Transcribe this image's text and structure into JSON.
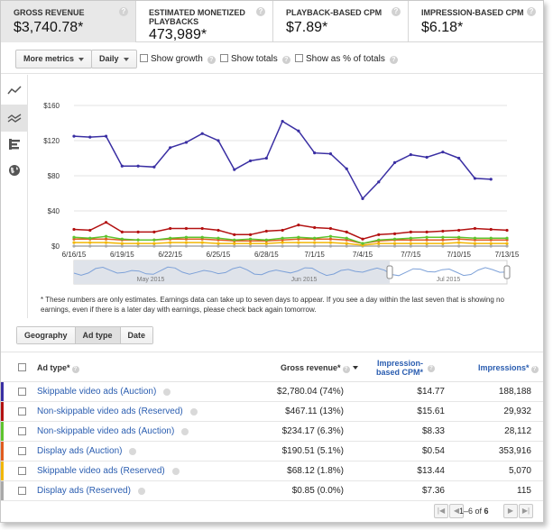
{
  "metrics": [
    {
      "label": "GROSS REVENUE",
      "value": "$3,740.78*",
      "active": true
    },
    {
      "label": "ESTIMATED MONETIZED PLAYBACKS",
      "value": "473,989*",
      "active": false
    },
    {
      "label": "PLAYBACK-BASED CPM",
      "value": "$7.89*",
      "active": false
    },
    {
      "label": "IMPRESSION-BASED CPM",
      "value": "$6.18*",
      "active": false
    }
  ],
  "toolbar": {
    "more_metrics": "More metrics",
    "interval": "Daily",
    "show_growth": "Show growth",
    "show_totals": "Show totals",
    "show_percent": "Show as % of totals"
  },
  "rail_icons": [
    "line-chart-icon",
    "multiline-chart-icon",
    "bar-chart-icon",
    "map-globe-icon"
  ],
  "chart_data": {
    "type": "line",
    "x": [
      "6/16/15",
      "6/17/15",
      "6/18/15",
      "6/19/15",
      "6/20/15",
      "6/21/15",
      "6/22/15",
      "6/23/15",
      "6/24/15",
      "6/25/15",
      "6/26/15",
      "6/27/15",
      "6/28/15",
      "6/29/15",
      "6/30/15",
      "7/1/15",
      "7/2/15",
      "7/3/15",
      "7/4/15",
      "7/5/15",
      "7/6/15",
      "7/7/15",
      "7/8/15",
      "7/9/15",
      "7/10/15",
      "7/11/15",
      "7/12/15",
      "7/13/15"
    ],
    "x_tick_labels": [
      "6/16/15",
      "6/19/15",
      "6/22/15",
      "6/25/15",
      "6/28/15",
      "7/1/15",
      "7/4/15",
      "7/7/15",
      "7/10/15",
      "7/13/15"
    ],
    "ylim": [
      0,
      160
    ],
    "y_ticks": [
      "$0",
      "$40",
      "$80",
      "$120",
      "$160"
    ],
    "grid": true,
    "series": [
      {
        "color": "#3a2fa3",
        "values": [
          125,
          124,
          125,
          91,
          91,
          90,
          112,
          118,
          128,
          120,
          87,
          97,
          100,
          142,
          131,
          106,
          105,
          88,
          54,
          73,
          95,
          104,
          101,
          107,
          100,
          77,
          76,
          null
        ]
      },
      {
        "color": "#b31212",
        "values": [
          19,
          18,
          27,
          16,
          16,
          16,
          20,
          20,
          20,
          18,
          13,
          13,
          17,
          18,
          24,
          21,
          20,
          16,
          8,
          13,
          14,
          16,
          16,
          17,
          18,
          20,
          19,
          18
        ]
      },
      {
        "color": "#5ec42e",
        "values": [
          10,
          9,
          11,
          8,
          7,
          7,
          9,
          10,
          10,
          9,
          7,
          8,
          7,
          9,
          10,
          9,
          11,
          9,
          3,
          7,
          8,
          9,
          10,
          10,
          10,
          9,
          9,
          9
        ]
      },
      {
        "color": "#e05c1f",
        "values": [
          8,
          8,
          8,
          7,
          7,
          7,
          8,
          8,
          8,
          7,
          6,
          6,
          6,
          7,
          8,
          8,
          8,
          7,
          3,
          6,
          7,
          7,
          7,
          7,
          8,
          7,
          7,
          7
        ]
      },
      {
        "color": "#f2b706",
        "values": [
          4,
          4,
          4,
          3,
          3,
          3,
          4,
          4,
          4,
          3,
          3,
          3,
          3,
          4,
          4,
          4,
          4,
          3,
          1,
          3,
          3,
          3,
          3,
          3,
          4,
          3,
          3,
          3
        ]
      },
      {
        "color": "#a9a9a9",
        "values": [
          0,
          0,
          0,
          0,
          0,
          0,
          0,
          0,
          0,
          0,
          0,
          0,
          0,
          0,
          0,
          0,
          0,
          0,
          0,
          0,
          0,
          0,
          0,
          0,
          0,
          0,
          0,
          0
        ]
      }
    ],
    "overview_labels": [
      "May 2015",
      "Jun 2015",
      "Jul 2015"
    ]
  },
  "note": "* These numbers are only estimates. Earnings data can take up to seven days to appear. If you see a day within the last seven that is showing no earnings, even if there is a later day with earnings, please check back again tomorrow.",
  "detail_tabs": [
    "Geography",
    "Ad type",
    "Date"
  ],
  "table": {
    "headers": {
      "name": "Ad type*",
      "gross": "Gross revenue*",
      "cpm": "Impression-based CPM*",
      "impressions": "Impressions*"
    },
    "rows": [
      {
        "color": "#3a2fa3",
        "name": "Skippable video ads (Auction)",
        "gross": "$2,780.04 (74%)",
        "cpm": "$14.77",
        "impressions": "188,188"
      },
      {
        "color": "#b31212",
        "name": "Non-skippable video ads (Reserved)",
        "gross": "$467.11 (13%)",
        "cpm": "$15.61",
        "impressions": "29,932"
      },
      {
        "color": "#5ec42e",
        "name": "Non-skippable video ads (Auction)",
        "gross": "$234.17 (6.3%)",
        "cpm": "$8.33",
        "impressions": "28,112"
      },
      {
        "color": "#e05c1f",
        "name": "Display ads (Auction)",
        "gross": "$190.51 (5.1%)",
        "cpm": "$0.54",
        "impressions": "353,916"
      },
      {
        "color": "#f2b706",
        "name": "Skippable video ads (Reserved)",
        "gross": "$68.12 (1.8%)",
        "cpm": "$13.44",
        "impressions": "5,070"
      },
      {
        "color": "#a9a9a9",
        "name": "Display ads (Reserved)",
        "gross": "$0.85 (0.0%)",
        "cpm": "$7.36",
        "impressions": "115"
      }
    ]
  },
  "pager": {
    "range": "1–6 of",
    "total": "6"
  }
}
